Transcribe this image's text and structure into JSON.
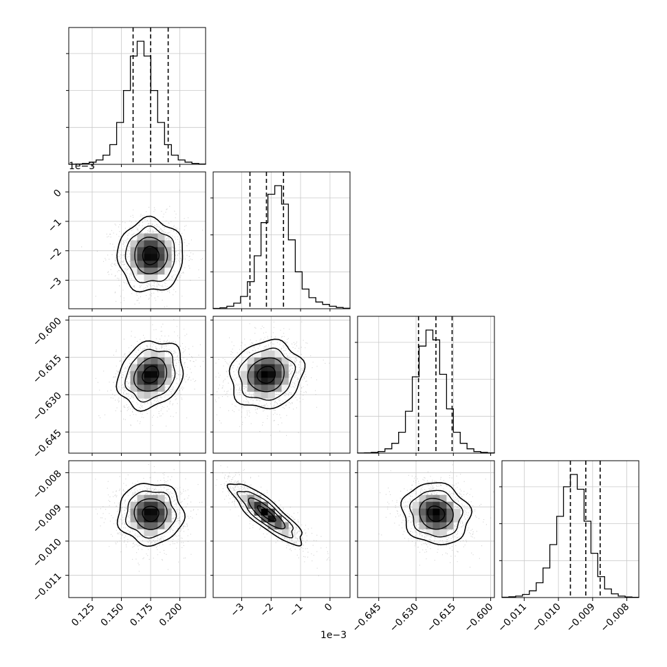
{
  "chart_data": {
    "type": "corner",
    "grid": true,
    "x_offset_label": "1e−3",
    "y_offset_label": "1e−3",
    "parameters": [
      {
        "range": [
          0.105,
          0.222
        ],
        "ticks": [
          0.125,
          0.15,
          0.175,
          0.2
        ],
        "tick_labels": [
          "0.125",
          "0.150",
          "0.175",
          "0.200"
        ],
        "quantiles": [
          0.16,
          0.175,
          0.19
        ],
        "mean": 0.175,
        "sd": 0.014
      },
      {
        "range": [
          -3.97,
          0.68
        ],
        "ticks": [
          -3,
          -2,
          -1,
          0
        ],
        "tick_labels": [
          "−3",
          "−2",
          "−1",
          "0"
        ],
        "quantiles": [
          -2.72,
          -2.16,
          -1.58
        ],
        "mean": -2.16,
        "sd": 0.62
      },
      {
        "range": [
          -0.6535,
          -0.5985
        ],
        "ticks": [
          -0.645,
          -0.63,
          -0.615,
          -0.6
        ],
        "tick_labels": [
          "−0.645",
          "−0.630",
          "−0.615",
          "−0.600"
        ],
        "quantiles": [
          -0.629,
          -0.622,
          -0.6155
        ],
        "mean": -0.622,
        "sd": 0.0068
      },
      {
        "range": [
          -0.01165,
          -0.00765
        ],
        "ticks": [
          -0.011,
          -0.01,
          -0.009,
          -0.008
        ],
        "tick_labels": [
          "−0.011",
          "−0.010",
          "−0.009",
          "−0.008"
        ],
        "quantiles": [
          -0.00965,
          -0.0092,
          -0.00878
        ],
        "mean": -0.0092,
        "sd": 0.00045
      }
    ],
    "correlations": [
      [
        1,
        0,
        0.2,
        0
      ],
      [
        0,
        1,
        0.1,
        -0.85
      ],
      [
        0.2,
        0.1,
        1,
        -0.1
      ],
      [
        0,
        -0.85,
        -0.1,
        1
      ]
    ],
    "hist_bins": 20,
    "histograms": [
      [
        1,
        3,
        8,
        18,
        36,
        75,
        160,
        340,
        600,
        880,
        1000,
        880,
        600,
        340,
        160,
        75,
        36,
        18,
        8,
        3
      ],
      [
        3,
        8,
        20,
        45,
        100,
        220,
        430,
        700,
        930,
        1000,
        850,
        560,
        300,
        160,
        90,
        55,
        35,
        20,
        10,
        4
      ],
      [
        1,
        3,
        6,
        13,
        35,
        80,
        170,
        340,
        620,
        870,
        1000,
        920,
        640,
        360,
        170,
        80,
        35,
        13,
        6,
        2
      ],
      [
        3,
        6,
        12,
        25,
        55,
        120,
        240,
        430,
        660,
        900,
        1000,
        880,
        620,
        360,
        170,
        70,
        30,
        12,
        5,
        2
      ]
    ]
  }
}
